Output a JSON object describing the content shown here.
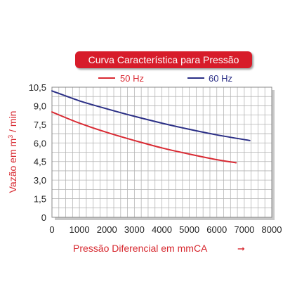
{
  "colors": {
    "title_bg": "#d71e2b",
    "title_text": "#ffffff",
    "series_50hz": "#d92a33",
    "series_60hz": "#2b2f86",
    "axis_label": "#d7282f",
    "grid": "#b5b5b5",
    "tick_text": "#222222"
  },
  "chart_data": {
    "type": "line",
    "title": "Curva Característica para Pressão",
    "xlabel": "Pressão Diferencial em mmCA",
    "xlabel_arrow": "➞",
    "ylabel_prefix": "Vazão em m",
    "ylabel_sup": "3",
    "ylabel_suffix": " / min",
    "xlim": [
      0,
      8000
    ],
    "ylim": [
      0,
      10.5
    ],
    "x_ticks": [
      "0",
      "1000",
      "2000",
      "3000",
      "4000",
      "5000",
      "6000",
      "7000",
      "8000"
    ],
    "y_ticks": [
      "0",
      "1,5",
      "3,0",
      "4,5",
      "6,0",
      "7,5",
      "9,0",
      "10,5"
    ],
    "grid": true,
    "legend_position": "top",
    "series": [
      {
        "name": "50 Hz",
        "color": "#d92a33",
        "points": [
          [
            0,
            8.5
          ],
          [
            1000,
            7.6
          ],
          [
            2000,
            6.85
          ],
          [
            3000,
            6.2
          ],
          [
            4000,
            5.6
          ],
          [
            5000,
            5.1
          ],
          [
            6000,
            4.65
          ],
          [
            6700,
            4.4
          ]
        ]
      },
      {
        "name": "60 Hz",
        "color": "#2b2f86",
        "points": [
          [
            0,
            10.2
          ],
          [
            1000,
            9.4
          ],
          [
            2000,
            8.75
          ],
          [
            3000,
            8.15
          ],
          [
            4000,
            7.6
          ],
          [
            5000,
            7.1
          ],
          [
            6000,
            6.65
          ],
          [
            7200,
            6.2
          ]
        ]
      }
    ]
  }
}
